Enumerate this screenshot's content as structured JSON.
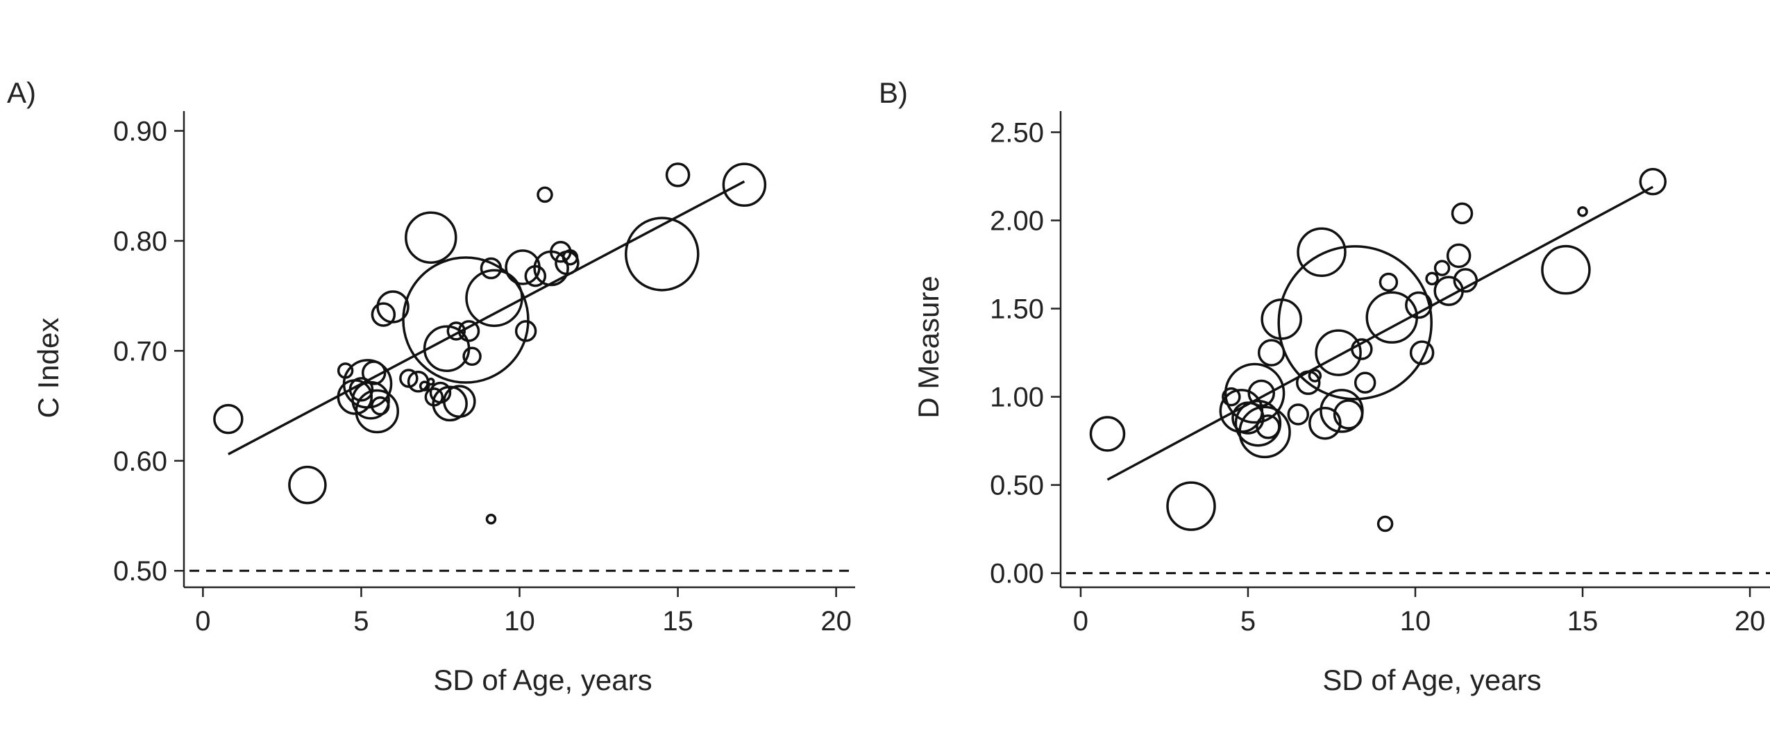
{
  "chart_data": [
    {
      "type": "scatter",
      "panel_label": "A)",
      "title": "",
      "xlabel": "SD of Age, years",
      "ylabel": "C Index",
      "xlim": [
        -0.6,
        20.6
      ],
      "ylim": [
        0.485,
        0.918
      ],
      "xticks": [
        0,
        5,
        10,
        15,
        20
      ],
      "yticks": [
        0.5,
        0.6,
        0.7,
        0.8,
        0.9
      ],
      "ytick_labels": [
        "0.50",
        "0.60",
        "0.70",
        "0.80",
        "0.90"
      ],
      "fit_line": {
        "x": [
          0.8,
          17.1
        ],
        "y": [
          0.606,
          0.854
        ]
      },
      "reference_line": {
        "y": 0.5,
        "style": "dashed"
      },
      "grid": false,
      "points": [
        {
          "x": 0.8,
          "y": 0.638,
          "size": 1.0
        },
        {
          "x": 3.3,
          "y": 0.578,
          "size": 1.3
        },
        {
          "x": 4.5,
          "y": 0.682,
          "size": 0.5
        },
        {
          "x": 4.8,
          "y": 0.658,
          "size": 1.2
        },
        {
          "x": 5.0,
          "y": 0.665,
          "size": 0.8
        },
        {
          "x": 5.2,
          "y": 0.67,
          "size": 1.7
        },
        {
          "x": 5.3,
          "y": 0.655,
          "size": 1.3
        },
        {
          "x": 5.4,
          "y": 0.68,
          "size": 0.8
        },
        {
          "x": 5.5,
          "y": 0.645,
          "size": 1.5
        },
        {
          "x": 5.6,
          "y": 0.65,
          "size": 0.6
        },
        {
          "x": 5.7,
          "y": 0.733,
          "size": 0.8
        },
        {
          "x": 6.0,
          "y": 0.74,
          "size": 1.1
        },
        {
          "x": 6.5,
          "y": 0.675,
          "size": 0.6
        },
        {
          "x": 6.8,
          "y": 0.672,
          "size": 0.7
        },
        {
          "x": 7.0,
          "y": 0.668,
          "size": 0.3
        },
        {
          "x": 7.2,
          "y": 0.672,
          "size": 0.2
        },
        {
          "x": 7.2,
          "y": 0.803,
          "size": 1.8
        },
        {
          "x": 7.3,
          "y": 0.658,
          "size": 0.6
        },
        {
          "x": 7.5,
          "y": 0.662,
          "size": 0.7
        },
        {
          "x": 7.7,
          "y": 0.702,
          "size": 1.6
        },
        {
          "x": 7.8,
          "y": 0.652,
          "size": 1.2
        },
        {
          "x": 8.0,
          "y": 0.718,
          "size": 0.6
        },
        {
          "x": 8.1,
          "y": 0.654,
          "size": 1.1
        },
        {
          "x": 8.3,
          "y": 0.728,
          "size": 4.5
        },
        {
          "x": 8.4,
          "y": 0.718,
          "size": 0.7
        },
        {
          "x": 8.5,
          "y": 0.695,
          "size": 0.6
        },
        {
          "x": 9.1,
          "y": 0.547,
          "size": 0.3
        },
        {
          "x": 9.1,
          "y": 0.775,
          "size": 0.7
        },
        {
          "x": 9.2,
          "y": 0.748,
          "size": 2.0
        },
        {
          "x": 10.1,
          "y": 0.776,
          "size": 1.2
        },
        {
          "x": 10.2,
          "y": 0.718,
          "size": 0.7
        },
        {
          "x": 10.5,
          "y": 0.768,
          "size": 0.7
        },
        {
          "x": 10.8,
          "y": 0.842,
          "size": 0.5
        },
        {
          "x": 11.0,
          "y": 0.775,
          "size": 1.2
        },
        {
          "x": 11.3,
          "y": 0.79,
          "size": 0.7
        },
        {
          "x": 11.5,
          "y": 0.78,
          "size": 0.8
        },
        {
          "x": 11.6,
          "y": 0.785,
          "size": 0.5
        },
        {
          "x": 14.5,
          "y": 0.788,
          "size": 2.6
        },
        {
          "x": 15.0,
          "y": 0.86,
          "size": 0.8
        },
        {
          "x": 17.1,
          "y": 0.851,
          "size": 1.5
        }
      ]
    },
    {
      "type": "scatter",
      "panel_label": "B)",
      "title": "",
      "xlabel": "SD of Age, years",
      "ylabel": "D Measure",
      "xlim": [
        -0.6,
        20.6
      ],
      "ylim": [
        -0.08,
        2.62
      ],
      "xticks": [
        0,
        5,
        10,
        15,
        20
      ],
      "yticks": [
        0,
        0.5,
        1,
        1.5,
        2,
        2.5
      ],
      "ytick_labels": [
        "0.00",
        "0.50",
        "1.00",
        "1.50",
        "2.00",
        "2.50"
      ],
      "fit_line": {
        "x": [
          0.8,
          17.1
        ],
        "y": [
          0.53,
          2.19
        ]
      },
      "reference_line": {
        "y": 0,
        "style": "dashed"
      },
      "grid": false,
      "points": [
        {
          "x": 0.8,
          "y": 0.79,
          "size": 1.2
        },
        {
          "x": 3.3,
          "y": 0.38,
          "size": 1.7
        },
        {
          "x": 4.5,
          "y": 1.0,
          "size": 0.6
        },
        {
          "x": 4.8,
          "y": 0.92,
          "size": 1.5
        },
        {
          "x": 5.0,
          "y": 0.88,
          "size": 1.1
        },
        {
          "x": 5.2,
          "y": 1.02,
          "size": 2.1
        },
        {
          "x": 5.3,
          "y": 0.85,
          "size": 1.6
        },
        {
          "x": 5.4,
          "y": 1.02,
          "size": 0.9
        },
        {
          "x": 5.5,
          "y": 0.8,
          "size": 1.8
        },
        {
          "x": 5.6,
          "y": 0.83,
          "size": 0.8
        },
        {
          "x": 5.7,
          "y": 1.25,
          "size": 0.9
        },
        {
          "x": 6.0,
          "y": 1.44,
          "size": 1.4
        },
        {
          "x": 6.5,
          "y": 0.9,
          "size": 0.7
        },
        {
          "x": 6.8,
          "y": 1.08,
          "size": 0.8
        },
        {
          "x": 7.0,
          "y": 1.12,
          "size": 0.4
        },
        {
          "x": 7.2,
          "y": 1.82,
          "size": 1.7
        },
        {
          "x": 7.3,
          "y": 0.85,
          "size": 1.1
        },
        {
          "x": 7.7,
          "y": 1.25,
          "size": 1.6
        },
        {
          "x": 7.8,
          "y": 0.92,
          "size": 1.5
        },
        {
          "x": 8.0,
          "y": 0.9,
          "size": 1.0
        },
        {
          "x": 8.2,
          "y": 1.42,
          "size": 5.5
        },
        {
          "x": 8.4,
          "y": 1.27,
          "size": 0.7
        },
        {
          "x": 8.5,
          "y": 1.08,
          "size": 0.7
        },
        {
          "x": 9.1,
          "y": 0.28,
          "size": 0.5
        },
        {
          "x": 9.2,
          "y": 1.65,
          "size": 0.6
        },
        {
          "x": 9.3,
          "y": 1.45,
          "size": 1.8
        },
        {
          "x": 10.1,
          "y": 1.52,
          "size": 0.9
        },
        {
          "x": 10.2,
          "y": 1.25,
          "size": 0.8
        },
        {
          "x": 10.5,
          "y": 1.67,
          "size": 0.4
        },
        {
          "x": 10.8,
          "y": 1.73,
          "size": 0.5
        },
        {
          "x": 11.0,
          "y": 1.6,
          "size": 1.0
        },
        {
          "x": 11.3,
          "y": 1.8,
          "size": 0.8
        },
        {
          "x": 11.4,
          "y": 2.04,
          "size": 0.7
        },
        {
          "x": 11.5,
          "y": 1.66,
          "size": 0.8
        },
        {
          "x": 14.5,
          "y": 1.72,
          "size": 1.7
        },
        {
          "x": 15.0,
          "y": 2.05,
          "size": 0.3
        },
        {
          "x": 17.1,
          "y": 2.22,
          "size": 0.9
        }
      ]
    }
  ]
}
